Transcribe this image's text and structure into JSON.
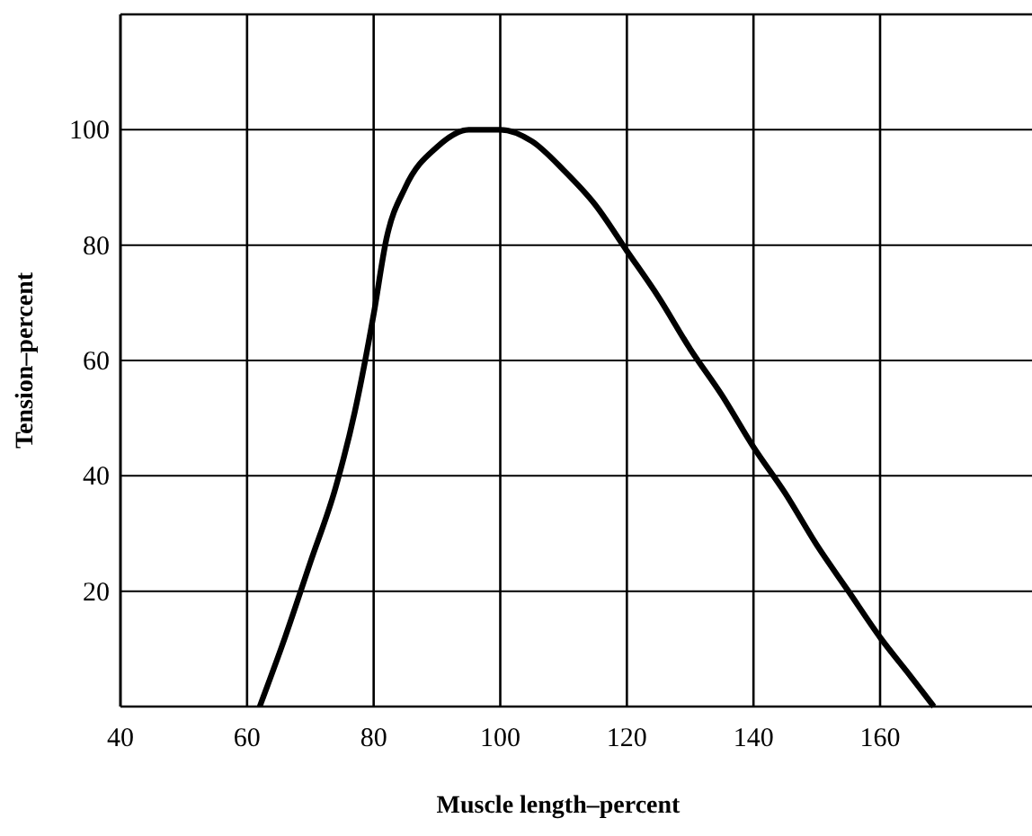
{
  "chart_data": {
    "type": "line",
    "xlabel": "Muscle length–percent",
    "ylabel": "Tension–percent",
    "x": [
      62,
      66,
      70,
      74,
      77,
      80,
      82,
      85,
      90,
      95,
      100,
      105,
      110,
      115,
      120,
      125,
      130,
      135,
      140,
      145,
      150,
      155,
      160,
      165,
      168.5
    ],
    "series": [
      {
        "color": "#000000",
        "values": [
          0,
          12,
          25,
          38,
          51,
          68,
          81,
          90,
          97,
          100,
          100,
          98,
          93,
          87,
          79,
          71,
          62,
          54,
          45,
          37,
          28,
          20,
          12,
          5,
          0
        ]
      }
    ],
    "xlim": [
      40,
      184
    ],
    "xticks": [
      40,
      60,
      80,
      100,
      120,
      140,
      160
    ],
    "ylim": [
      0,
      120
    ],
    "yticks": [
      {
        "value": 0,
        "label": null
      },
      20,
      40,
      60,
      80,
      100
    ],
    "grid": true,
    "marker": "none",
    "line_style": "solid"
  }
}
